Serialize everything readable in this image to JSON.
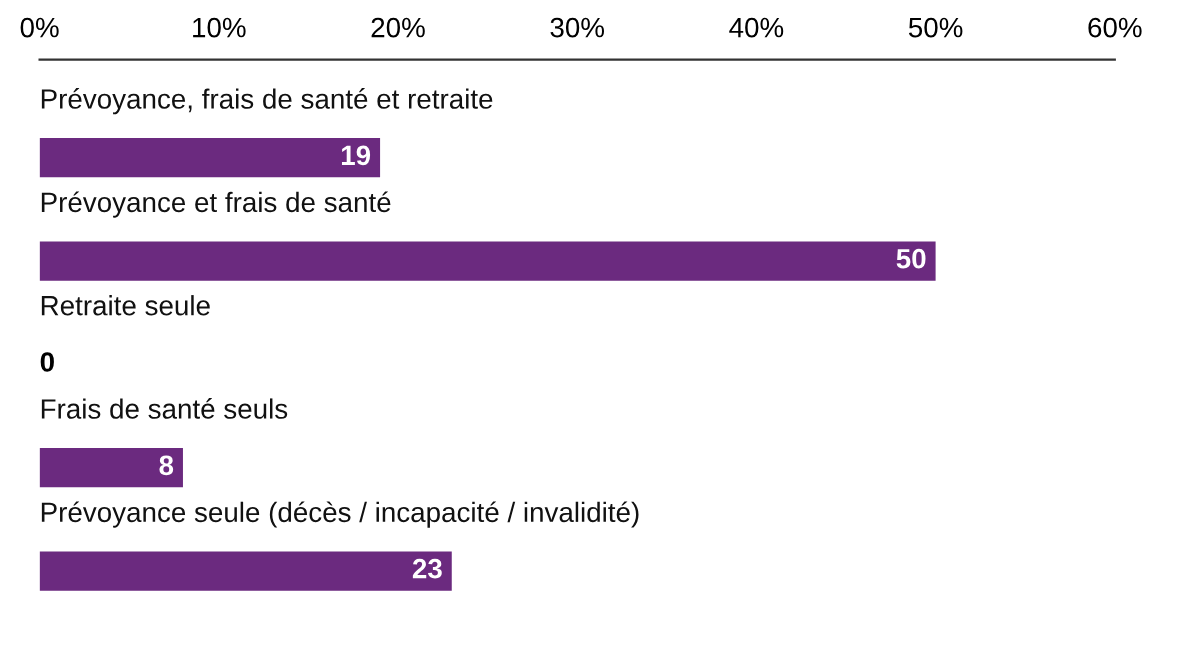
{
  "chart_data": {
    "type": "bar",
    "orientation": "horizontal",
    "categories": [
      "Prévoyance, frais de santé et retraite",
      "Prévoyance et frais de santé",
      "Retraite seule",
      "Frais de santé seuls",
      "Prévoyance seule (décès / incapacité / invalidité)"
    ],
    "values": [
      19,
      50,
      0,
      8,
      23
    ],
    "color": "#6b2a7f",
    "data_labels": true,
    "xlim": [
      0,
      60
    ],
    "xticks": [
      {
        "value": 0,
        "label": "0%"
      },
      {
        "value": 10,
        "label": "10%"
      },
      {
        "value": 20,
        "label": "20%"
      },
      {
        "value": 30,
        "label": "30%"
      },
      {
        "value": 40,
        "label": "40%"
      },
      {
        "value": 50,
        "label": "50%"
      },
      {
        "value": 60,
        "label": "60%"
      }
    ],
    "grid": false,
    "legend": false
  }
}
